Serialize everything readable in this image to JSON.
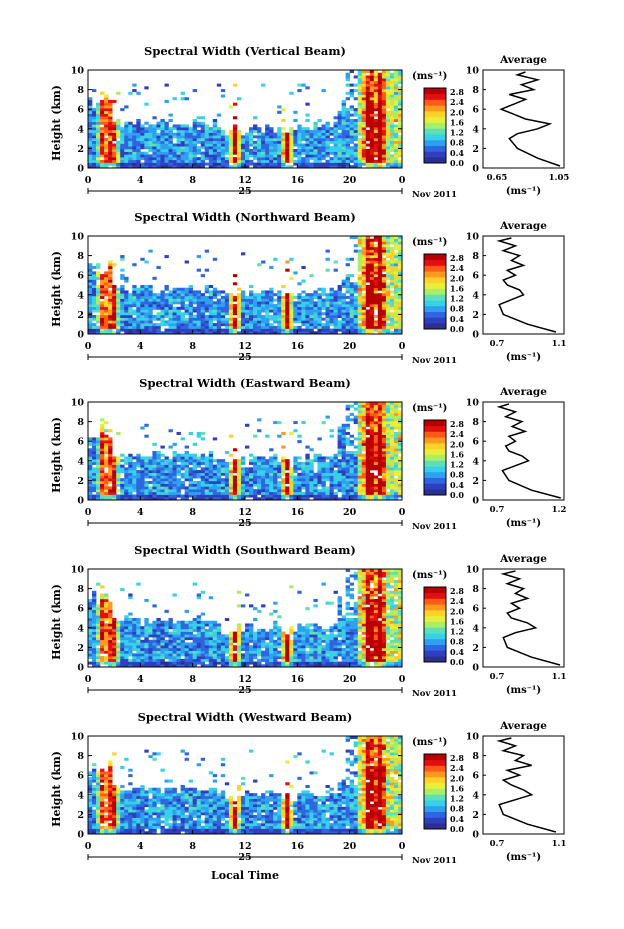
{
  "figure": {
    "xlabel": "Local Time",
    "date_label_day": "25",
    "date_label_month": "Nov 2011",
    "colorbar_unit": "(ms⁻¹)",
    "colorbar_ticks": [
      "2.8",
      "2.4",
      "2.0",
      "1.6",
      "1.2",
      "0.8",
      "0.4",
      "0.0"
    ],
    "colorbar_colors": [
      "#2b2f8f",
      "#2f3fbf",
      "#2f66e0",
      "#2fa0f0",
      "#37d0e8",
      "#5de0b8",
      "#a8ee68",
      "#e8ee3a",
      "#ffd22a",
      "#ff9a1f",
      "#ff5a17",
      "#e01010",
      "#b80000"
    ],
    "x_ticks": [
      "0",
      "4",
      "8",
      "12",
      "16",
      "20",
      "0"
    ],
    "y_ticks": [
      "0",
      "2",
      "4",
      "6",
      "8",
      "10"
    ],
    "ylabel": "Height (km)",
    "avg_title": "Average",
    "avg_unit": "(ms⁻¹)"
  },
  "chart_data": [
    {
      "type": "heatmap",
      "title": "Spectral Width (Vertical Beam)",
      "xlabel": "Local Time",
      "ylabel": "Height (km)",
      "xlim": [
        0,
        24
      ],
      "ylim": [
        0,
        10
      ],
      "colorbar": {
        "label": "(ms⁻¹)",
        "range": [
          0,
          3.0
        ]
      },
      "average_profile": {
        "title": "Average",
        "xlabel": "(ms⁻¹)",
        "xticks": [
          "0.65",
          "1.05"
        ],
        "xlim": [
          0.65,
          1.05
        ],
        "heights": [
          0.2,
          1,
          2,
          3,
          3.5,
          4,
          4.5,
          5,
          5.5,
          6,
          6.5,
          7,
          7.5,
          8,
          8.5,
          9,
          9.5,
          9.8
        ],
        "values": [
          1.03,
          0.92,
          0.82,
          0.78,
          0.82,
          0.92,
          0.98,
          0.86,
          0.8,
          0.74,
          0.8,
          0.86,
          0.78,
          0.9,
          0.84,
          0.92,
          0.82,
          0.86
        ]
      }
    },
    {
      "type": "heatmap",
      "title": "Spectral Width (Northward Beam)",
      "xlabel": "Local Time",
      "ylabel": "Height (km)",
      "xlim": [
        0,
        24
      ],
      "ylim": [
        0,
        10
      ],
      "colorbar": {
        "label": "(ms⁻¹)",
        "range": [
          0,
          3.0
        ]
      },
      "average_profile": {
        "title": "Average",
        "xlabel": "(ms⁻¹)",
        "xticks": [
          "0.7",
          "1.1"
        ],
        "xlim": [
          0.7,
          1.1
        ],
        "heights": [
          0.2,
          1,
          2,
          3,
          3.5,
          4,
          4.5,
          5,
          5.5,
          6,
          6.5,
          7,
          7.5,
          8,
          8.5,
          9,
          9.5,
          9.8
        ],
        "values": [
          1.06,
          0.92,
          0.8,
          0.78,
          0.84,
          0.9,
          0.88,
          0.82,
          0.8,
          0.86,
          0.82,
          0.9,
          0.84,
          0.88,
          0.8,
          0.86,
          0.78,
          0.84
        ]
      }
    },
    {
      "type": "heatmap",
      "title": "Spectral Width (Eastward Beam)",
      "xlabel": "Local Time",
      "ylabel": "Height (km)",
      "xlim": [
        0,
        24
      ],
      "ylim": [
        0,
        10
      ],
      "colorbar": {
        "label": "(ms⁻¹)",
        "range": [
          0,
          3.0
        ]
      },
      "average_profile": {
        "title": "Average",
        "xlabel": "(ms⁻¹)",
        "xticks": [
          "0.7",
          "1.2"
        ],
        "xlim": [
          0.7,
          1.2
        ],
        "heights": [
          0.2,
          1,
          2,
          3,
          3.5,
          4,
          4.5,
          5,
          5.5,
          6,
          6.5,
          7,
          7.5,
          8,
          8.5,
          9,
          9.5,
          9.8
        ],
        "values": [
          1.18,
          1.0,
          0.86,
          0.82,
          0.9,
          0.98,
          0.94,
          0.86,
          0.84,
          0.9,
          0.86,
          0.96,
          0.88,
          0.94,
          0.84,
          0.9,
          0.8,
          0.86
        ]
      }
    },
    {
      "type": "heatmap",
      "title": "Spectral Width (Southward Beam)",
      "xlabel": "Local Time",
      "ylabel": "Height (km)",
      "xlim": [
        0,
        24
      ],
      "ylim": [
        0,
        10
      ],
      "colorbar": {
        "label": "(ms⁻¹)",
        "range": [
          0,
          3.0
        ]
      },
      "average_profile": {
        "title": "Average",
        "xlabel": "(ms⁻¹)",
        "xticks": [
          "0.7",
          "1.1"
        ],
        "xlim": [
          0.7,
          1.1
        ],
        "heights": [
          0.2,
          1,
          2,
          3,
          3.5,
          4,
          4.5,
          5,
          5.5,
          6,
          6.5,
          7,
          7.5,
          8,
          8.5,
          9,
          9.5,
          9.8
        ],
        "values": [
          1.08,
          0.94,
          0.82,
          0.8,
          0.86,
          0.96,
          0.92,
          0.84,
          0.82,
          0.88,
          0.84,
          0.92,
          0.86,
          0.9,
          0.82,
          0.88,
          0.8,
          0.86
        ]
      }
    },
    {
      "type": "heatmap",
      "title": "Spectral Width (Westward Beam)",
      "xlabel": "Local Time",
      "ylabel": "Height (km)",
      "xlim": [
        0,
        24
      ],
      "ylim": [
        0,
        10
      ],
      "colorbar": {
        "label": "(ms⁻¹)",
        "range": [
          0,
          3.0
        ]
      },
      "average_profile": {
        "title": "Average",
        "xlabel": "(ms⁻¹)",
        "xticks": [
          "0.7",
          "1.1"
        ],
        "xlim": [
          0.7,
          1.1
        ],
        "heights": [
          0.2,
          1,
          2,
          3,
          3.5,
          4,
          4.5,
          5,
          5.5,
          6,
          6.5,
          7,
          7.5,
          8,
          8.5,
          9,
          9.5,
          9.8
        ],
        "values": [
          1.06,
          0.92,
          0.8,
          0.78,
          0.86,
          0.94,
          0.9,
          0.84,
          0.8,
          0.88,
          0.82,
          0.94,
          0.86,
          0.9,
          0.8,
          0.86,
          0.78,
          0.84
        ]
      }
    }
  ]
}
